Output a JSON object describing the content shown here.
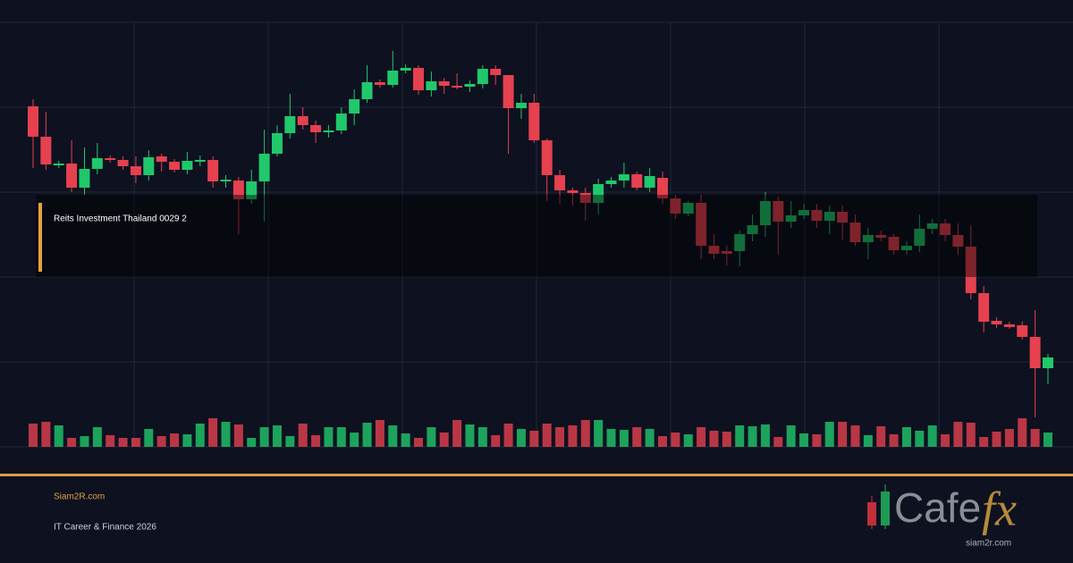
{
  "chart_data": {
    "type": "candlestick",
    "title": "Reits Investment Thailand 0029 2",
    "series": {
      "open": [
        381,
        347,
        315,
        317,
        290,
        311,
        323,
        321,
        314,
        304,
        325,
        319,
        310,
        319,
        321,
        297,
        298,
        277,
        297,
        328,
        351,
        370,
        360,
        352,
        354,
        373,
        389,
        408,
        405,
        421,
        424,
        399,
        409,
        404,
        403,
        406,
        423,
        416,
        379,
        385,
        343,
        304,
        287,
        284,
        273,
        294,
        298,
        305,
        290,
        301,
        278,
        261,
        273,
        225,
        219,
        219,
        238,
        248,
        275,
        252,
        259,
        265,
        253,
        263,
        251,
        229,
        237,
        235,
        220,
        225,
        244,
        250,
        237,
        224,
        172,
        141,
        137,
        136,
        123,
        88
      ],
      "high": [
        389,
        375,
        320,
        343,
        335,
        340,
        326,
        325,
        325,
        332,
        328,
        322,
        330,
        326,
        325,
        304,
        302,
        310,
        355,
        360,
        395,
        380,
        365,
        360,
        380,
        400,
        427,
        411,
        443,
        428,
        427,
        420,
        413,
        418,
        410,
        427,
        427,
        416,
        395,
        395,
        345,
        310,
        290,
        290,
        300,
        302,
        318,
        308,
        312,
        308,
        282,
        275,
        282,
        238,
        225,
        242,
        260,
        285,
        280,
        275,
        272,
        272,
        270,
        270,
        260,
        245,
        242,
        238,
        230,
        260,
        255,
        255,
        250,
        248,
        180,
        145,
        140,
        140,
        153,
        104
      ],
      "low": [
        312,
        310,
        312,
        285,
        282,
        305,
        318,
        310,
        295,
        298,
        308,
        307,
        305,
        314,
        290,
        290,
        238,
        272,
        252,
        325,
        345,
        355,
        340,
        346,
        350,
        360,
        385,
        402,
        402,
        418,
        394,
        392,
        395,
        400,
        397,
        401,
        405,
        328,
        367,
        340,
        275,
        272,
        270,
        253,
        260,
        290,
        290,
        287,
        285,
        272,
        255,
        258,
        210,
        210,
        203,
        202,
        230,
        235,
        215,
        245,
        255,
        245,
        238,
        232,
        225,
        210,
        230,
        215,
        215,
        218,
        238,
        230,
        215,
        165,
        128,
        133,
        132,
        120,
        33,
        70
      ],
      "close": [
        347,
        316,
        317,
        290,
        311,
        323,
        321,
        314,
        304,
        324,
        319,
        310,
        320,
        321,
        297,
        299,
        277,
        297,
        328,
        351,
        370,
        360,
        352,
        354,
        373,
        389,
        408,
        405,
        421,
        424,
        399,
        409,
        404,
        402,
        406,
        423,
        416,
        379,
        385,
        343,
        304,
        287,
        284,
        273,
        294,
        298,
        305,
        290,
        303,
        278,
        261,
        273,
        225,
        216,
        216,
        238,
        248,
        275,
        252,
        259,
        265,
        253,
        263,
        251,
        229,
        237,
        234,
        220,
        225,
        244,
        250,
        237,
        224,
        172,
        140,
        137,
        134,
        123,
        88,
        100
      ]
    },
    "volume": [
      26,
      28,
      24,
      10,
      12,
      22,
      13,
      10,
      10,
      20,
      12,
      15,
      14,
      26,
      32,
      28,
      25,
      10,
      22,
      24,
      12,
      26,
      13,
      22,
      22,
      16,
      27,
      30,
      24,
      15,
      10,
      22,
      16,
      30,
      25,
      22,
      13,
      26,
      20,
      18,
      26,
      22,
      24,
      30,
      30,
      20,
      19,
      22,
      20,
      12,
      16,
      14,
      22,
      18,
      17,
      24,
      23,
      25,
      11,
      24,
      15,
      14,
      28,
      28,
      24,
      13,
      23,
      14,
      22,
      18,
      24,
      14,
      28,
      27,
      11,
      17,
      20,
      32,
      20,
      16
    ],
    "ylim": [
      0,
      475
    ],
    "yticks": [
      0,
      95,
      190,
      285,
      380,
      475
    ],
    "y2lim": [
      0,
      100
    ],
    "up_color": "#20c86b",
    "down_color": "#e5414f",
    "grid": true
  },
  "footer": {
    "site": "Siam2R.com",
    "tagline": "IT Career & Finance 2026",
    "logo": "Cafe",
    "logo_accent": "fx",
    "logo_site": "siam2r.com"
  }
}
